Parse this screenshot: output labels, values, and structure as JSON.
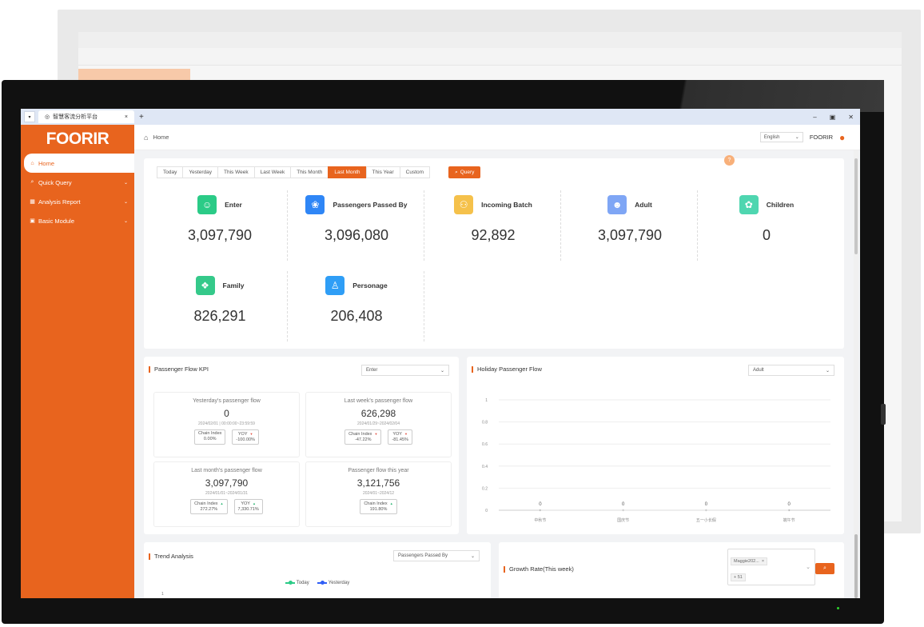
{
  "colors": {
    "accent": "#e8641e",
    "sidebar": "#e8641e",
    "green_up": "#2bb673",
    "red_down": "#e24a3b"
  },
  "browser": {
    "tab_title": "智慧客流分析平台",
    "new_tab": "+",
    "dropdown": "▾",
    "min": "–",
    "max": "▣",
    "close": "✕"
  },
  "sidebar": {
    "logo": "FOORIR",
    "items": [
      {
        "label": "Home",
        "icon": "home-icon",
        "glyph": "⌂",
        "active": true
      },
      {
        "label": "Quick Query",
        "icon": "search-icon",
        "glyph": "⌕",
        "chevron": "⌄"
      },
      {
        "label": "Analysis Report",
        "icon": "chart-icon",
        "glyph": "▦",
        "chevron": "⌄"
      },
      {
        "label": "Basic Module",
        "icon": "module-icon",
        "glyph": "▣",
        "chevron": "⌄"
      }
    ]
  },
  "topbar": {
    "breadcrumb": "Home",
    "language": "English",
    "username": "FOORIR"
  },
  "filters": {
    "options": [
      "Today",
      "Yesterday",
      "This Week",
      "Last Week",
      "This Month",
      "Last Month",
      "This Year",
      "Custom"
    ],
    "selected": "Last Month",
    "query_label": "Query"
  },
  "stats": [
    {
      "label": "Enter",
      "value": "3,097,790",
      "icon": "enter-icon",
      "glyph": "☺",
      "color": "#2bcb87"
    },
    {
      "label": "Passengers Passed By",
      "value": "3,096,080",
      "icon": "passersby-icon",
      "glyph": "❀",
      "color": "#2f86f6"
    },
    {
      "label": "Incoming Batch",
      "value": "92,892",
      "icon": "batch-icon",
      "glyph": "⚇",
      "color": "#f5c14b"
    },
    {
      "label": "Adult",
      "value": "3,097,790",
      "icon": "adult-icon",
      "glyph": "☻",
      "color": "#7fa6f5"
    },
    {
      "label": "Children",
      "value": "0",
      "icon": "children-icon",
      "glyph": "✿",
      "color": "#4fd6b0"
    },
    {
      "label": "Family",
      "value": "826,291",
      "icon": "family-icon",
      "glyph": "❖",
      "color": "#35c98a"
    },
    {
      "label": "Personage",
      "value": "206,408",
      "icon": "personage-icon",
      "glyph": "♙",
      "color": "#2f9ef6"
    }
  ],
  "kpi_panel": {
    "title": "Passenger Flow KPI",
    "select": "Enter",
    "cards": [
      {
        "title": "Yesterday's passenger flow",
        "value": "0",
        "date": "2024/02/01 | 00:00:00~23:59:59",
        "chips": [
          {
            "label": "Chain Index",
            "arrow": "",
            "dir": "",
            "value": "0.00%"
          },
          {
            "label": "YOY",
            "arrow": "▼",
            "dir": "dn",
            "value": "-100.00%"
          }
        ]
      },
      {
        "title": "Last week's passenger flow",
        "value": "626,298",
        "date": "2024/01/29~2024/02/04",
        "chips": [
          {
            "label": "Chain Index",
            "arrow": "▼",
            "dir": "dn",
            "value": "-47.22%"
          },
          {
            "label": "YOY",
            "arrow": "▼",
            "dir": "dn",
            "value": "-81.45%"
          }
        ]
      },
      {
        "title": "Last month's passenger flow",
        "value": "3,097,790",
        "date": "2024/01/01~2024/01/31",
        "chips": [
          {
            "label": "Chain Index",
            "arrow": "▲",
            "dir": "up",
            "value": "272.27%"
          },
          {
            "label": "YOY",
            "arrow": "▲",
            "dir": "up",
            "value": "7,330.71%"
          }
        ]
      },
      {
        "title": "Passenger flow this year",
        "value": "3,121,756",
        "date": "2024/01~2024/12",
        "chips": [
          {
            "label": "Chain Index",
            "arrow": "▲",
            "dir": "up",
            "value": "191.80%"
          }
        ]
      }
    ]
  },
  "holiday_panel": {
    "title": "Holiday Passenger Flow",
    "select": "Adult"
  },
  "trend_panel": {
    "title": "Trend Analysis",
    "select": "Passengers Passed By",
    "legend": [
      "Today",
      "Yesterday"
    ],
    "ytick": "1"
  },
  "growth_panel": {
    "title": "Growth Rate(This week)",
    "tags": [
      "Maggie202...",
      "+ 51"
    ]
  },
  "chart_data": {
    "type": "line",
    "categories": [
      "中秋节",
      "国庆节",
      "五一小长假",
      "端午节"
    ],
    "values": [
      0,
      0,
      0,
      0
    ],
    "value_labels": [
      "0",
      "0",
      "0",
      "0"
    ],
    "ylim": [
      0,
      1
    ],
    "yticks": [
      "0",
      "0.2",
      "0.4",
      "0.6",
      "0.8",
      "1"
    ],
    "grid": true
  }
}
